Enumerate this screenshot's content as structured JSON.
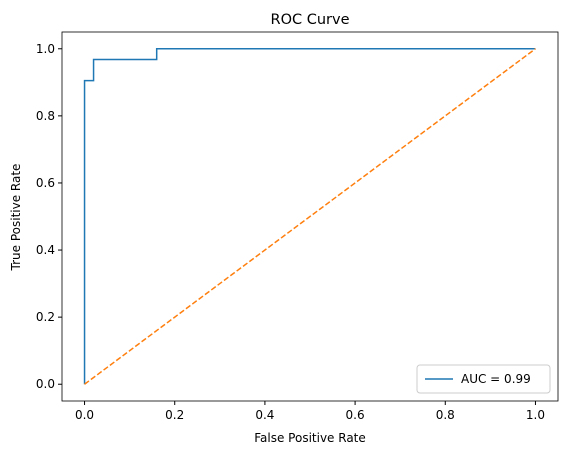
{
  "chart_data": {
    "type": "line",
    "title": "ROC Curve",
    "x_label": "False Positive Rate",
    "y_label": "True Positive Rate",
    "series": [
      {
        "name": "AUC = 0.99",
        "color": "#1f77b4",
        "dash": "solid",
        "x": [
          0,
          0,
          0.02,
          0.02,
          0.16,
          0.16,
          1.0
        ],
        "values": [
          0,
          0.905,
          0.905,
          0.968,
          0.968,
          1.0,
          1.0
        ]
      },
      {
        "color": "#ff7f0e",
        "dash": "dashed",
        "x": [
          0,
          1
        ],
        "values": [
          0,
          1
        ]
      }
    ],
    "xlim": [
      -0.05,
      1.05
    ],
    "ylim": [
      -0.05,
      1.05
    ],
    "xticks": [
      {
        "value": 0,
        "label": "0.0"
      },
      0.2,
      0.4,
      0.6,
      0.8,
      {
        "value": 1,
        "label": "1.0"
      }
    ],
    "yticks": [
      {
        "value": 0,
        "label": "0.0"
      },
      0.2,
      0.4,
      0.6,
      0.8,
      {
        "value": 1,
        "label": "1.0"
      }
    ],
    "grid": false,
    "legend": "lower right"
  }
}
